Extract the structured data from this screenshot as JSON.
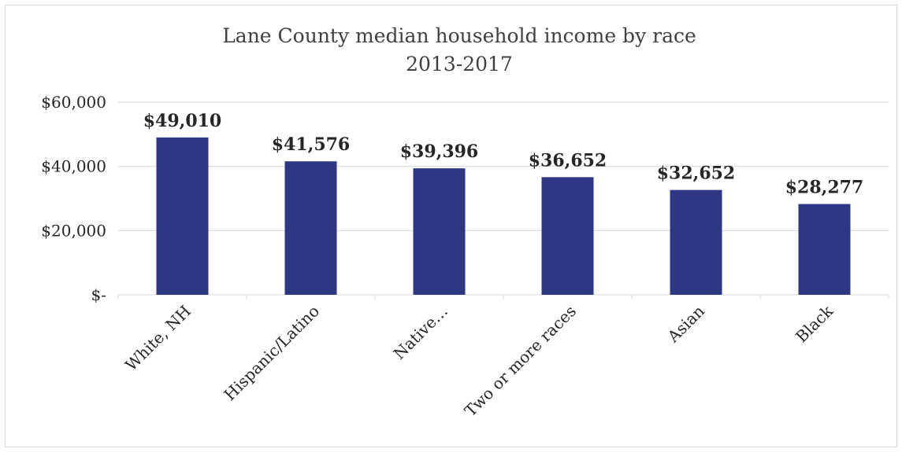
{
  "chart_data": {
    "type": "bar",
    "title": "Lane County median household income by race",
    "subtitle": "2013-2017",
    "categories": [
      "White, NH",
      "Hispanic/Latino",
      "Native…",
      "Two or more races",
      "Asian",
      "Black"
    ],
    "values": [
      49010,
      41576,
      39396,
      36652,
      32652,
      28277
    ],
    "data_labels": [
      "$49,010",
      "$41,576",
      "$39,396",
      "$36,652",
      "$32,652",
      "$28,277"
    ],
    "xlabel": "",
    "ylabel": "",
    "ylim": [
      0,
      60000
    ],
    "yticks": [
      0,
      20000,
      40000,
      60000
    ],
    "ytick_labels": [
      "$-",
      "$20,000",
      "$40,000",
      "$60,000"
    ],
    "grid": true,
    "legend": "none",
    "bar_color": "#2e3784"
  }
}
